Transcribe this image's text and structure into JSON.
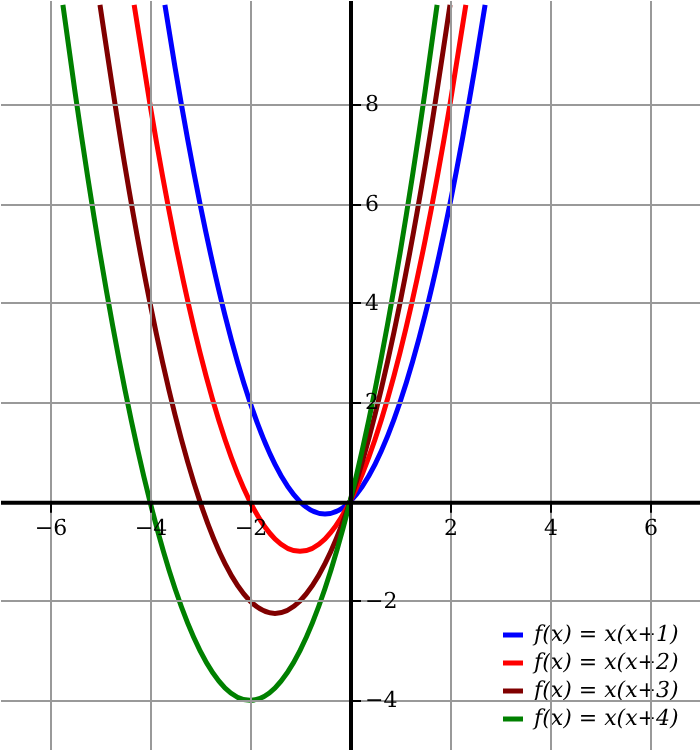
{
  "chart_data": {
    "type": "line",
    "xlim": [
      -7,
      7
    ],
    "ylim": [
      -5,
      10.1
    ],
    "xticks": [
      -6,
      -4,
      -2,
      2,
      4,
      6
    ],
    "yticks": [
      -4,
      -2,
      2,
      4,
      6,
      8
    ],
    "grid": true,
    "legend": "bottom right",
    "marker": "none",
    "line_style": "solid",
    "series": [
      {
        "name": "f(x) = x(x+1)",
        "color": "#0000ff",
        "x": [
          -3.702,
          -3.5,
          -3,
          -2.5,
          -2,
          -1.5,
          -1,
          -0.5,
          0,
          0.5,
          1,
          1.5,
          2,
          2.5,
          2.702
        ],
        "values": [
          10,
          8.75,
          6,
          3.75,
          2,
          0.75,
          0,
          -0.25,
          0,
          0.75,
          2,
          3.75,
          6,
          8.75,
          10
        ]
      },
      {
        "name": "f(x) = x(x+2)",
        "color": "#ff0000",
        "x": [
          -4.317,
          -4,
          -3.5,
          -3,
          -2.5,
          -2,
          -1.5,
          -1,
          -0.5,
          0,
          0.5,
          1,
          1.5,
          2,
          2.317
        ],
        "values": [
          10,
          8,
          5.25,
          3,
          1.25,
          0,
          -0.75,
          -1,
          -0.75,
          0,
          1.25,
          3,
          5.25,
          8,
          10
        ]
      },
      {
        "name": "f(x) = x(x+3)",
        "color": "#800000",
        "x": [
          -5,
          -4.5,
          -4,
          -3.5,
          -3,
          -2.5,
          -2,
          -1.5,
          -1,
          -0.5,
          0,
          0.5,
          1,
          1.5,
          2
        ],
        "values": [
          10,
          6.75,
          4,
          1.75,
          0,
          -1.25,
          -2,
          -2.25,
          -2,
          -1.25,
          0,
          1.75,
          4,
          6.75,
          10
        ]
      },
      {
        "name": "f(x) = x(x+4)",
        "color": "#008000",
        "x": [
          -5.742,
          -5.5,
          -5,
          -4.5,
          -4,
          -3.5,
          -3,
          -2.5,
          -2,
          -1.5,
          -1,
          -0.5,
          0,
          0.5,
          1,
          1.5,
          1.742
        ],
        "values": [
          10,
          8.25,
          5,
          2.25,
          0,
          -1.75,
          -3,
          -3.75,
          -4,
          -3.75,
          -3,
          -1.75,
          0,
          2.25,
          5,
          8.25,
          10
        ]
      }
    ]
  }
}
